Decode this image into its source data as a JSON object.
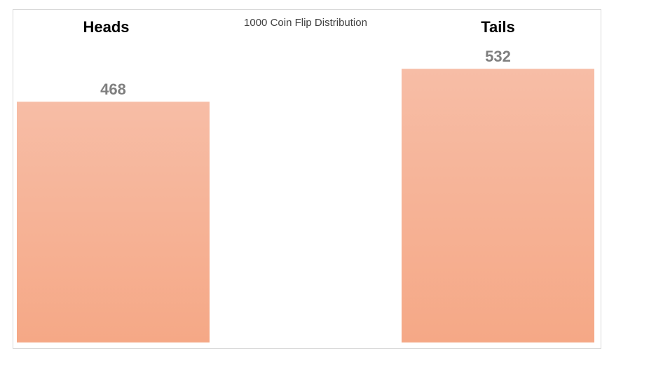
{
  "chart_data": {
    "type": "bar",
    "title": "1000 Coin Flip Distribution",
    "categories": [
      "Heads",
      "Tails"
    ],
    "values": [
      468,
      532
    ],
    "color": "#f5aa89"
  }
}
